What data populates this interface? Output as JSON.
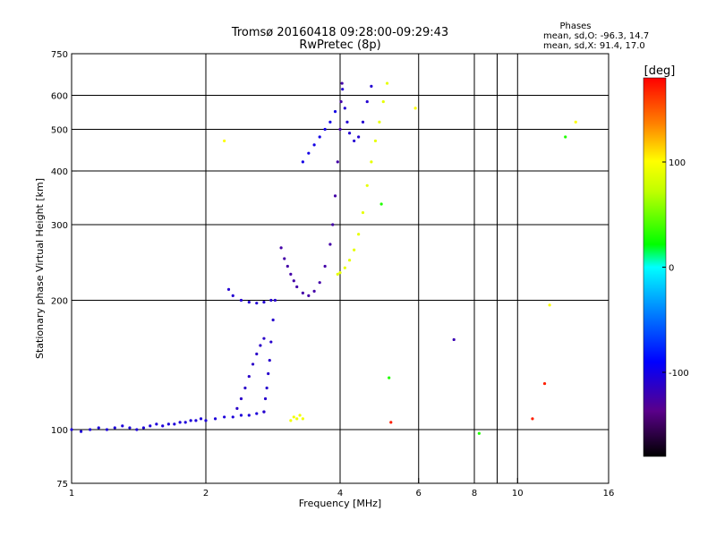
{
  "chart_data": {
    "type": "scatter",
    "title": "Tromsø 20160418 09:28:00-09:29:43",
    "subtitle": "RwPretec (8p)",
    "xlabel": "Frequency [MHz]",
    "ylabel": "Stationary phase Virtual Height [km]",
    "x_scale": "log",
    "y_scale": "log",
    "xlim": [
      1,
      16
    ],
    "ylim": [
      75,
      750
    ],
    "x_ticks": [
      1,
      2,
      4,
      6,
      8,
      10,
      16
    ],
    "x_tick_labels": [
      "1",
      "2",
      "4",
      "6",
      "8",
      "10",
      "16"
    ],
    "x_grid": [
      2,
      4,
      6,
      8,
      9,
      10
    ],
    "y_ticks": [
      75,
      100,
      200,
      300,
      400,
      500,
      600,
      750
    ],
    "y_tick_labels": [
      "75",
      "100",
      "200",
      "300",
      "400",
      "500",
      "600",
      "750"
    ],
    "y_grid": [
      100,
      200,
      300,
      400,
      500,
      600
    ],
    "grid": true,
    "legend_block": {
      "heading": "Phases",
      "line_o": "mean, sd,O: -96.3, 14.7",
      "line_x": "mean, sd,X:  91.4, 17.0"
    },
    "colorbar": {
      "label": "[deg]",
      "range": [
        -180,
        180
      ],
      "ticks": [
        100,
        0,
        -100
      ],
      "tick_labels": [
        "100",
        "0",
        "-100"
      ],
      "colormap": "rainbow"
    },
    "traces": [
      {
        "name": "",
        "phase_deg": -105,
        "points": [
          [
            1.0,
            100
          ],
          [
            1.05,
            99
          ],
          [
            1.1,
            100
          ],
          [
            1.15,
            101
          ],
          [
            1.2,
            100
          ],
          [
            1.25,
            101
          ],
          [
            1.3,
            102
          ],
          [
            1.35,
            101
          ],
          [
            1.4,
            100
          ],
          [
            1.45,
            101
          ],
          [
            1.5,
            102
          ],
          [
            1.55,
            103
          ],
          [
            1.6,
            102
          ],
          [
            1.65,
            103
          ],
          [
            1.7,
            103
          ],
          [
            1.75,
            104
          ],
          [
            1.8,
            104
          ],
          [
            1.85,
            105
          ],
          [
            1.9,
            105
          ],
          [
            1.95,
            106
          ],
          [
            2.0,
            105
          ],
          [
            2.1,
            106
          ],
          [
            2.2,
            107
          ],
          [
            2.3,
            107
          ],
          [
            2.4,
            108
          ],
          [
            2.5,
            108
          ],
          [
            2.6,
            109
          ],
          [
            2.7,
            110
          ]
        ]
      },
      {
        "name": "",
        "phase_deg": -112,
        "points": [
          [
            2.35,
            112
          ],
          [
            2.4,
            118
          ],
          [
            2.45,
            125
          ],
          [
            2.5,
            133
          ],
          [
            2.55,
            142
          ],
          [
            2.6,
            150
          ],
          [
            2.65,
            157
          ],
          [
            2.7,
            163
          ]
        ]
      },
      {
        "name": "",
        "phase_deg": -110,
        "points": [
          [
            2.7,
            110
          ],
          [
            2.72,
            118
          ],
          [
            2.74,
            125
          ],
          [
            2.76,
            135
          ],
          [
            2.78,
            145
          ],
          [
            2.8,
            160
          ],
          [
            2.83,
            180
          ],
          [
            2.86,
            200
          ]
        ]
      },
      {
        "name": "",
        "phase_deg": -108,
        "points": [
          [
            2.25,
            212
          ],
          [
            2.3,
            205
          ],
          [
            2.4,
            200
          ],
          [
            2.5,
            198
          ],
          [
            2.6,
            197
          ],
          [
            2.7,
            198
          ],
          [
            2.8,
            200
          ]
        ]
      },
      {
        "name": "",
        "phase_deg": -125,
        "points": [
          [
            2.95,
            265
          ],
          [
            3.0,
            250
          ],
          [
            3.05,
            240
          ],
          [
            3.1,
            230
          ],
          [
            3.15,
            222
          ],
          [
            3.2,
            215
          ],
          [
            3.3,
            208
          ],
          [
            3.4,
            205
          ],
          [
            3.5,
            210
          ],
          [
            3.6,
            220
          ],
          [
            3.7,
            240
          ],
          [
            3.8,
            270
          ],
          [
            3.85,
            300
          ],
          [
            3.9,
            350
          ],
          [
            3.95,
            420
          ],
          [
            4.0,
            500
          ],
          [
            4.02,
            580
          ],
          [
            4.04,
            640
          ]
        ]
      },
      {
        "name": "",
        "phase_deg": -100,
        "points": [
          [
            3.3,
            420
          ],
          [
            3.4,
            440
          ],
          [
            3.5,
            460
          ],
          [
            3.6,
            480
          ],
          [
            3.7,
            500
          ],
          [
            3.8,
            520
          ],
          [
            3.9,
            550
          ]
        ]
      },
      {
        "name": "",
        "phase_deg": -108,
        "points": [
          [
            4.05,
            620
          ],
          [
            4.1,
            560
          ],
          [
            4.15,
            520
          ],
          [
            4.2,
            490
          ],
          [
            4.3,
            470
          ],
          [
            4.4,
            480
          ],
          [
            4.5,
            520
          ],
          [
            4.6,
            580
          ],
          [
            4.7,
            630
          ]
        ]
      },
      {
        "name": "",
        "phase_deg": 90,
        "points": [
          [
            3.95,
            230
          ],
          [
            4.0,
            232
          ],
          [
            4.1,
            238
          ],
          [
            4.2,
            248
          ],
          [
            4.3,
            262
          ],
          [
            4.4,
            285
          ],
          [
            4.5,
            320
          ],
          [
            4.6,
            370
          ],
          [
            4.7,
            420
          ],
          [
            4.8,
            470
          ],
          [
            4.9,
            520
          ],
          [
            5.0,
            580
          ],
          [
            5.1,
            640
          ]
        ]
      },
      {
        "name": "",
        "phase_deg": 95,
        "points": [
          [
            3.1,
            105
          ],
          [
            3.15,
            107
          ],
          [
            3.2,
            106
          ],
          [
            3.25,
            108
          ],
          [
            3.3,
            106
          ]
        ]
      },
      {
        "name": "",
        "phase_deg": 100,
        "points": [
          [
            2.2,
            470
          ],
          [
            5.9,
            560
          ],
          [
            13.5,
            520
          ],
          [
            11.8,
            195
          ]
        ]
      },
      {
        "name": "",
        "phase_deg": 30,
        "points": [
          [
            4.95,
            335
          ],
          [
            5.15,
            132
          ],
          [
            8.2,
            98
          ],
          [
            12.8,
            480
          ]
        ]
      },
      {
        "name": "",
        "phase_deg": 170,
        "points": [
          [
            5.2,
            104
          ],
          [
            10.8,
            106
          ],
          [
            11.5,
            128
          ]
        ]
      },
      {
        "name": "",
        "phase_deg": -120,
        "points": [
          [
            7.2,
            162
          ]
        ]
      }
    ]
  }
}
